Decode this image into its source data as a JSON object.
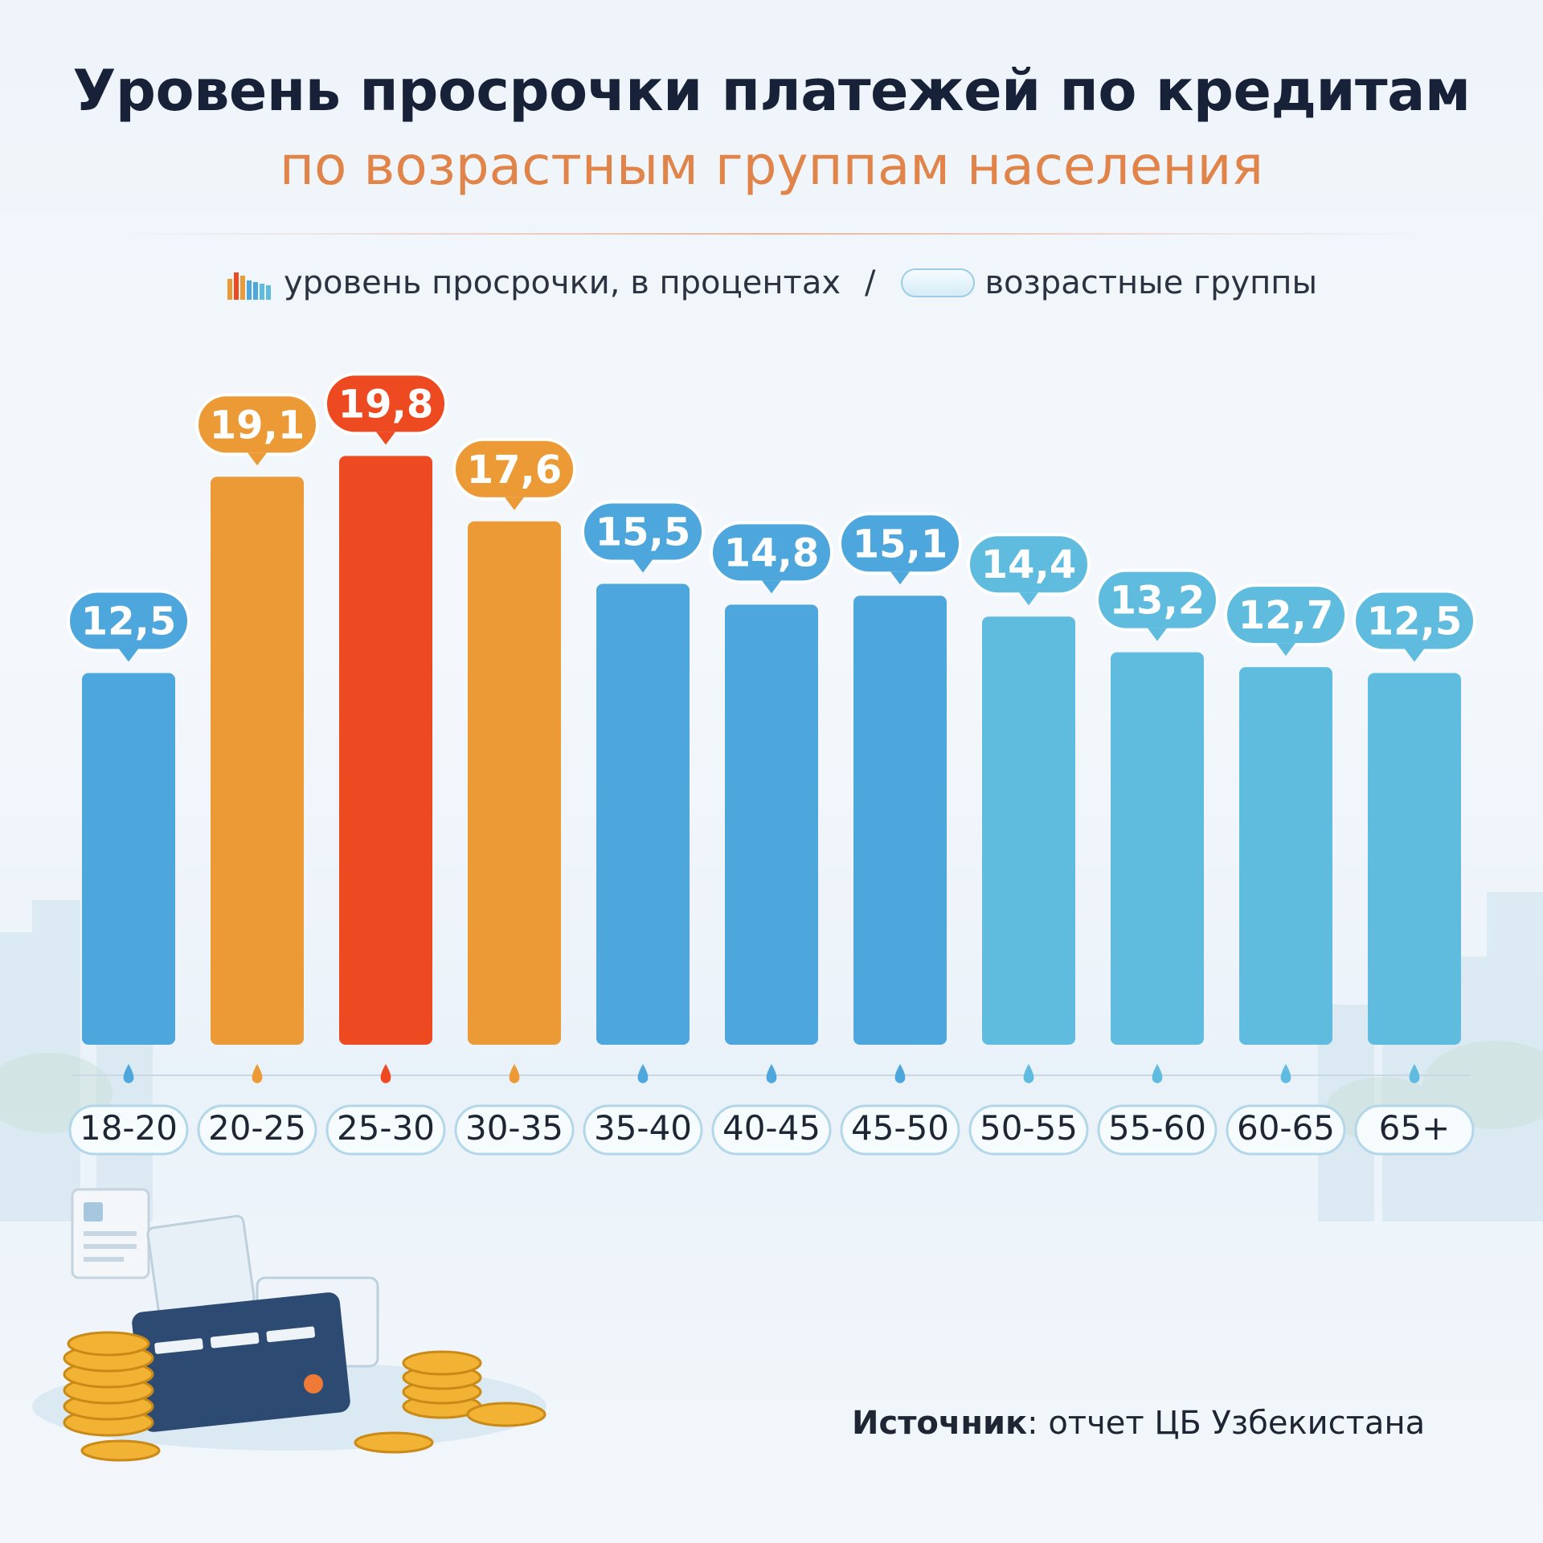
{
  "title": "Уровень просрочки платежей по кредитам",
  "subtitle": "по возрастным группам населения",
  "legend": {
    "bars_label": "уровень просрочки, в процентах",
    "separator": "/",
    "groups_label": "возрастные группы"
  },
  "source": {
    "label": "Источник",
    "text": ": отчет ЦБ Узбекистана"
  },
  "colors": {
    "blue_dark": "#4ea7dc",
    "blue_light": "#5fbcdf",
    "orange": "#eb9a36",
    "red": "#ee4a22",
    "title": "#172238",
    "subtitle": "#e0844a"
  },
  "chart_data": {
    "type": "bar",
    "title": "Уровень просрочки платежей по кредитам по возрастным группам населения",
    "xlabel": "возрастные группы",
    "ylabel": "уровень просрочки, в процентах",
    "ylim": [
      0,
      21
    ],
    "categories": [
      "18-20",
      "20-25",
      "25-30",
      "30-35",
      "35-40",
      "40-45",
      "45-50",
      "50-55",
      "55-60",
      "60-65",
      "65+"
    ],
    "values": [
      12.5,
      19.1,
      19.8,
      17.6,
      15.5,
      14.8,
      15.1,
      14.4,
      13.2,
      12.7,
      12.5
    ],
    "value_labels": [
      "12,5",
      "19,1",
      "19,8",
      "17,6",
      "15,5",
      "14,8",
      "15,1",
      "14,4",
      "13,2",
      "12,7",
      "12,5"
    ],
    "highlight": [
      "blue",
      "orange",
      "red",
      "orange",
      "blue",
      "blue",
      "blue",
      "blue",
      "blue",
      "blue",
      "blue"
    ]
  }
}
